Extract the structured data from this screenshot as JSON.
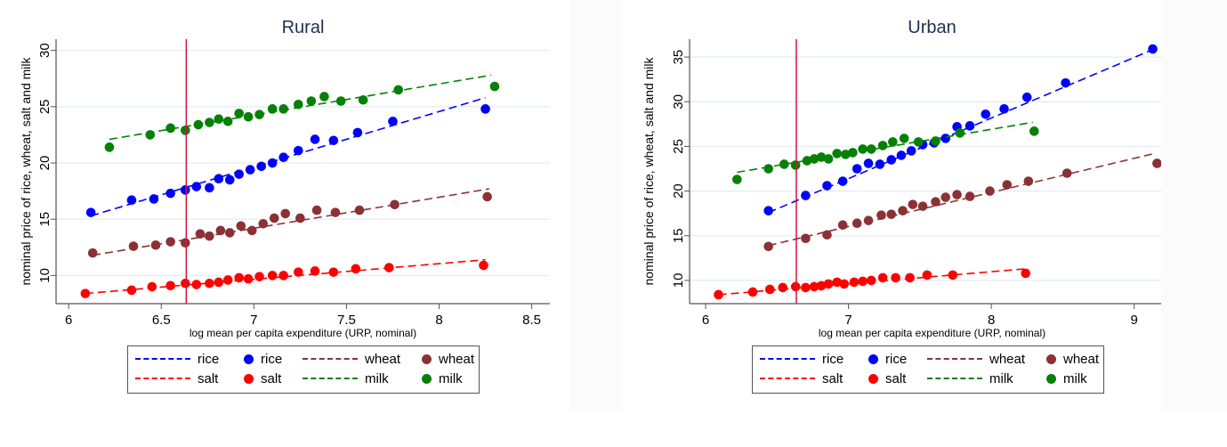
{
  "colors": {
    "rice": "#0000ff",
    "wheat": "#8b3136",
    "salt": "#ff0000",
    "milk": "#068006",
    "vline": "#d3133f",
    "grid": "#e8eff2",
    "title": "#1e2f4f"
  },
  "chart_data": [
    {
      "id": "rural",
      "type": "scatter",
      "title": "Rural",
      "xlabel": "log mean per capita expenditure (URP, nominal)",
      "ylabel": "nominal price of rice, wheat, salt and milk",
      "xlim": [
        5.98,
        8.55
      ],
      "ylim": [
        7.5,
        31
      ],
      "xticks": [
        6,
        6.5,
        7,
        7.5,
        8,
        8.5
      ],
      "xtick_labels": [
        "6",
        "6.5",
        "7",
        "7.5",
        "8",
        "8.5"
      ],
      "yticks": [
        10,
        15,
        20,
        25,
        30
      ],
      "ytick_labels": [
        "10",
        "15",
        "20",
        "25",
        "30"
      ],
      "grid": true,
      "vline_x": 6.635,
      "legend_position": "bottom",
      "series": [
        {
          "name": "rice",
          "fit": [
            [
              6.12,
              15.3
            ],
            [
              8.25,
              25.8
            ]
          ],
          "points": [
            [
              6.12,
              15.6
            ],
            [
              6.34,
              16.7
            ],
            [
              6.46,
              16.8
            ],
            [
              6.55,
              17.3
            ],
            [
              6.63,
              17.6
            ],
            [
              6.69,
              17.9
            ],
            [
              6.76,
              17.8
            ],
            [
              6.81,
              18.6
            ],
            [
              6.87,
              18.5
            ],
            [
              6.92,
              19.0
            ],
            [
              6.98,
              19.4
            ],
            [
              7.04,
              19.7
            ],
            [
              7.1,
              20.0
            ],
            [
              7.16,
              20.5
            ],
            [
              7.24,
              21.1
            ],
            [
              7.33,
              22.1
            ],
            [
              7.43,
              22.0
            ],
            [
              7.56,
              22.7
            ],
            [
              7.75,
              23.7
            ],
            [
              8.25,
              24.8
            ]
          ]
        },
        {
          "name": "wheat",
          "fit": [
            [
              6.13,
              11.8
            ],
            [
              8.27,
              17.7
            ]
          ],
          "points": [
            [
              6.13,
              12.0
            ],
            [
              6.35,
              12.6
            ],
            [
              6.47,
              12.7
            ],
            [
              6.55,
              13.0
            ],
            [
              6.63,
              12.9
            ],
            [
              6.71,
              13.7
            ],
            [
              6.76,
              13.5
            ],
            [
              6.82,
              14.0
            ],
            [
              6.87,
              13.8
            ],
            [
              6.93,
              14.4
            ],
            [
              6.99,
              14.0
            ],
            [
              7.05,
              14.6
            ],
            [
              7.11,
              15.1
            ],
            [
              7.17,
              15.5
            ],
            [
              7.25,
              15.1
            ],
            [
              7.34,
              15.8
            ],
            [
              7.44,
              15.6
            ],
            [
              7.57,
              15.8
            ],
            [
              7.76,
              16.3
            ],
            [
              8.26,
              17.0
            ]
          ]
        },
        {
          "name": "salt",
          "fit": [
            [
              6.09,
              8.4
            ],
            [
              8.25,
              11.4
            ]
          ],
          "points": [
            [
              6.09,
              8.4
            ],
            [
              6.34,
              8.7
            ],
            [
              6.45,
              9.0
            ],
            [
              6.55,
              9.1
            ],
            [
              6.63,
              9.3
            ],
            [
              6.69,
              9.2
            ],
            [
              6.76,
              9.3
            ],
            [
              6.81,
              9.4
            ],
            [
              6.86,
              9.6
            ],
            [
              6.92,
              9.8
            ],
            [
              6.97,
              9.7
            ],
            [
              7.03,
              9.9
            ],
            [
              7.1,
              10.0
            ],
            [
              7.16,
              10.0
            ],
            [
              7.24,
              10.3
            ],
            [
              7.33,
              10.4
            ],
            [
              7.43,
              10.3
            ],
            [
              7.55,
              10.6
            ],
            [
              7.73,
              10.7
            ],
            [
              8.24,
              10.9
            ]
          ]
        },
        {
          "name": "milk",
          "fit": [
            [
              6.22,
              22.1
            ],
            [
              8.28,
              27.8
            ]
          ],
          "points": [
            [
              6.22,
              21.4
            ],
            [
              6.44,
              22.5
            ],
            [
              6.55,
              23.1
            ],
            [
              6.63,
              22.9
            ],
            [
              6.7,
              23.4
            ],
            [
              6.76,
              23.6
            ],
            [
              6.81,
              23.9
            ],
            [
              6.86,
              23.7
            ],
            [
              6.92,
              24.4
            ],
            [
              6.97,
              24.1
            ],
            [
              7.03,
              24.3
            ],
            [
              7.1,
              24.8
            ],
            [
              7.16,
              24.8
            ],
            [
              7.24,
              25.2
            ],
            [
              7.31,
              25.5
            ],
            [
              7.38,
              25.9
            ],
            [
              7.47,
              25.5
            ],
            [
              7.59,
              25.6
            ],
            [
              7.78,
              26.5
            ],
            [
              8.3,
              26.8
            ]
          ]
        }
      ]
    },
    {
      "id": "urban",
      "type": "scatter",
      "title": "Urban",
      "xlabel": "log mean per capita expenditure (URP, nominal)",
      "ylabel": "nominal price of rice, wheat, salt and milk",
      "xlim": [
        5.95,
        9.22
      ],
      "ylim": [
        7.4,
        37
      ],
      "xticks": [
        6,
        7,
        8,
        9
      ],
      "xtick_labels": [
        "6",
        "7",
        "8",
        "9"
      ],
      "yticks": [
        10,
        15,
        20,
        25,
        30,
        35
      ],
      "ytick_labels": [
        "10",
        "15",
        "20",
        "25",
        "30",
        "35"
      ],
      "grid": true,
      "vline_x": 6.635,
      "legend_position": "bottom",
      "series": [
        {
          "name": "rice",
          "fit": [
            [
              6.44,
              17.6
            ],
            [
              9.14,
              35.9
            ]
          ],
          "points": [
            [
              6.44,
              17.8
            ],
            [
              6.7,
              19.5
            ],
            [
              6.85,
              20.6
            ],
            [
              6.96,
              21.1
            ],
            [
              7.06,
              22.5
            ],
            [
              7.14,
              23.1
            ],
            [
              7.22,
              23.0
            ],
            [
              7.3,
              23.5
            ],
            [
              7.37,
              24.0
            ],
            [
              7.44,
              24.5
            ],
            [
              7.52,
              25.2
            ],
            [
              7.6,
              25.4
            ],
            [
              7.68,
              25.9
            ],
            [
              7.76,
              27.2
            ],
            [
              7.85,
              27.3
            ],
            [
              7.96,
              28.6
            ],
            [
              8.09,
              29.2
            ],
            [
              8.25,
              30.5
            ],
            [
              8.52,
              32.1
            ],
            [
              9.13,
              35.9
            ]
          ]
        },
        {
          "name": "wheat",
          "fit": [
            [
              6.44,
              13.9
            ],
            [
              9.14,
              24.2
            ]
          ],
          "points": [
            [
              6.44,
              13.8
            ],
            [
              6.7,
              14.7
            ],
            [
              6.85,
              15.1
            ],
            [
              6.96,
              16.2
            ],
            [
              7.06,
              16.4
            ],
            [
              7.14,
              16.7
            ],
            [
              7.23,
              17.3
            ],
            [
              7.3,
              17.4
            ],
            [
              7.38,
              17.8
            ],
            [
              7.45,
              18.5
            ],
            [
              7.52,
              18.3
            ],
            [
              7.61,
              18.8
            ],
            [
              7.68,
              19.3
            ],
            [
              7.76,
              19.6
            ],
            [
              7.85,
              19.4
            ],
            [
              7.99,
              20.0
            ],
            [
              8.11,
              20.7
            ],
            [
              8.26,
              21.1
            ],
            [
              8.53,
              22.0
            ],
            [
              9.16,
              23.1
            ]
          ]
        },
        {
          "name": "salt",
          "fit": [
            [
              6.09,
              8.4
            ],
            [
              8.24,
              11.3
            ]
          ],
          "points": [
            [
              6.09,
              8.4
            ],
            [
              6.33,
              8.7
            ],
            [
              6.45,
              9.0
            ],
            [
              6.54,
              9.2
            ],
            [
              6.63,
              9.3
            ],
            [
              6.7,
              9.2
            ],
            [
              6.76,
              9.3
            ],
            [
              6.81,
              9.4
            ],
            [
              6.86,
              9.6
            ],
            [
              6.92,
              9.8
            ],
            [
              6.97,
              9.6
            ],
            [
              7.04,
              9.8
            ],
            [
              7.1,
              9.9
            ],
            [
              7.16,
              10.0
            ],
            [
              7.24,
              10.3
            ],
            [
              7.33,
              10.3
            ],
            [
              7.43,
              10.3
            ],
            [
              7.55,
              10.6
            ],
            [
              7.73,
              10.6
            ],
            [
              8.24,
              10.8
            ]
          ]
        },
        {
          "name": "milk",
          "fit": [
            [
              6.22,
              22.1
            ],
            [
              8.29,
              27.7
            ]
          ],
          "points": [
            [
              6.22,
              21.3
            ],
            [
              6.44,
              22.5
            ],
            [
              6.55,
              23.0
            ],
            [
              6.63,
              22.9
            ],
            [
              6.71,
              23.4
            ],
            [
              6.76,
              23.6
            ],
            [
              6.81,
              23.8
            ],
            [
              6.86,
              23.6
            ],
            [
              6.92,
              24.2
            ],
            [
              6.98,
              24.1
            ],
            [
              7.03,
              24.3
            ],
            [
              7.1,
              24.7
            ],
            [
              7.16,
              24.7
            ],
            [
              7.24,
              25.1
            ],
            [
              7.31,
              25.5
            ],
            [
              7.39,
              25.9
            ],
            [
              7.49,
              25.5
            ],
            [
              7.61,
              25.6
            ],
            [
              7.78,
              26.5
            ],
            [
              8.3,
              26.7
            ]
          ]
        }
      ]
    }
  ],
  "legend": {
    "items": [
      {
        "kind": "line",
        "series": "rice",
        "label": "rice"
      },
      {
        "kind": "dot",
        "series": "rice",
        "label": "rice"
      },
      {
        "kind": "line",
        "series": "wheat",
        "label": "wheat"
      },
      {
        "kind": "dot",
        "series": "wheat",
        "label": "wheat"
      },
      {
        "kind": "line",
        "series": "salt",
        "label": "salt"
      },
      {
        "kind": "dot",
        "series": "salt",
        "label": "salt"
      },
      {
        "kind": "line",
        "series": "milk",
        "label": "milk"
      },
      {
        "kind": "dot",
        "series": "milk",
        "label": "milk"
      }
    ]
  }
}
